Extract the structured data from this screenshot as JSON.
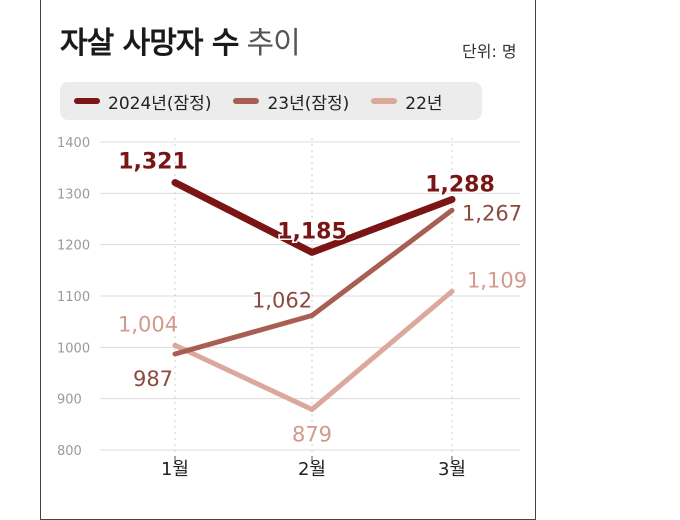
{
  "title_bold": "자살 사망자 수",
  "title_light": "추이",
  "unit": "단위: 명",
  "chart_data": {
    "type": "line",
    "categories": [
      "1월",
      "2월",
      "3월"
    ],
    "ylim": [
      800,
      1400
    ],
    "yticks": [
      800,
      900,
      1000,
      1100,
      1200,
      1300,
      1400
    ],
    "grid": true,
    "legend_position": "top",
    "series": [
      {
        "name": "2024년(잠정)",
        "color": "#7b1414",
        "values": [
          1321,
          1185,
          1288
        ],
        "labels": [
          "1,321",
          "1,185",
          "1,288"
        ]
      },
      {
        "name": "23년(잠정)",
        "color": "#a85e52",
        "values": [
          987,
          1062,
          1267
        ],
        "labels": [
          "987",
          "1,062",
          "1,267"
        ]
      },
      {
        "name": "22년",
        "color": "#dca89c",
        "values": [
          1004,
          879,
          1109
        ],
        "labels": [
          "1,004",
          "879",
          "1,109"
        ]
      }
    ]
  }
}
